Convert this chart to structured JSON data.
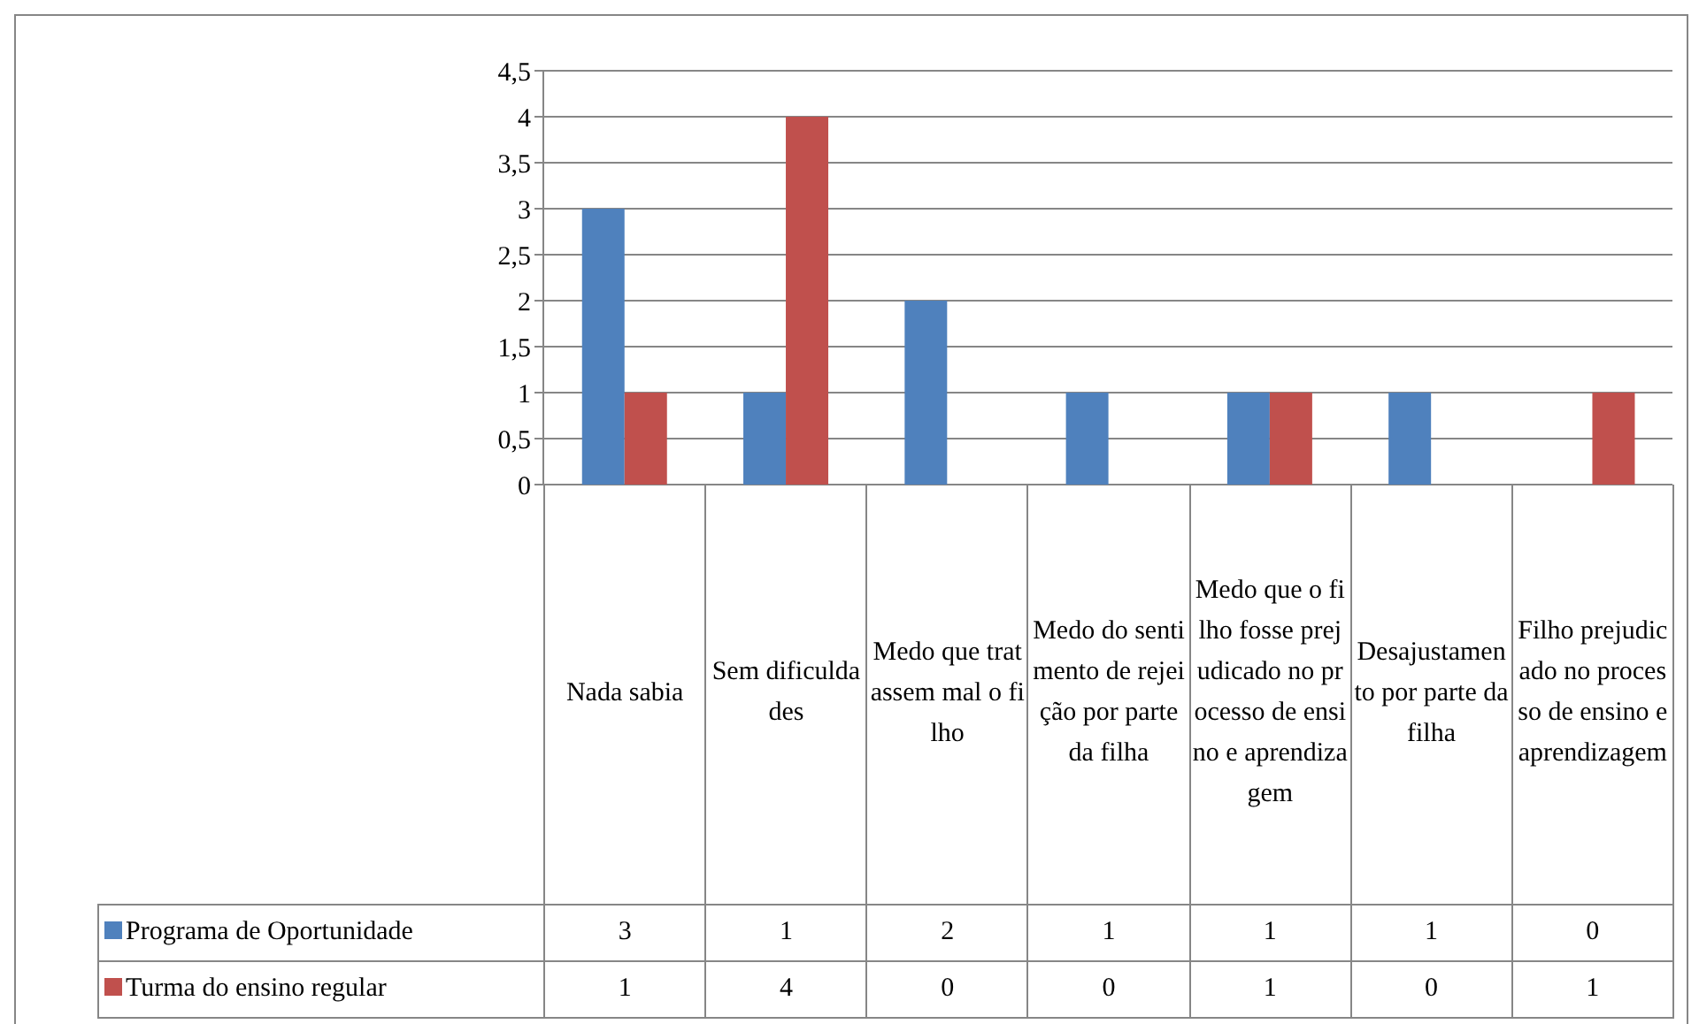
{
  "chart_data": {
    "type": "bar",
    "categories": [
      "Nada sabia",
      "Sem dificuldades",
      "Medo que tratassem mal o filho",
      "Medo do sentimento de rejeição por parte da filha",
      "Medo que o filho fosse prejudicado no processo de ensino e aprendizagem",
      "Desajustamento por parte da filha",
      "Filho prejudicado no processo de ensino e aprendizagem"
    ],
    "series": [
      {
        "name": "Programa de Oportunidade",
        "color": "#4f81bd",
        "values": [
          3,
          1,
          2,
          1,
          1,
          1,
          0
        ]
      },
      {
        "name": "Turma do ensino regular",
        "color": "#c0504d",
        "values": [
          1,
          4,
          0,
          0,
          1,
          0,
          1
        ]
      }
    ],
    "ylim": [
      0,
      4.5
    ],
    "yticks": [
      0,
      {
        "value": 0.5,
        "label": "0,5"
      },
      1,
      {
        "value": 1.5,
        "label": "1,5"
      },
      2,
      {
        "value": 2.5,
        "label": "2,5"
      },
      3,
      {
        "value": 3.5,
        "label": "3,5"
      },
      4,
      {
        "value": 4.5,
        "label": "4,5"
      }
    ],
    "grid": "y",
    "legend": "bottom",
    "data_labels": true
  }
}
